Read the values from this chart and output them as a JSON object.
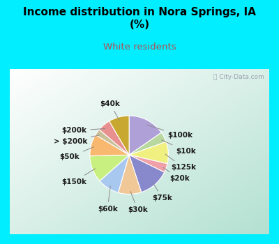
{
  "title": "Income distribution in Nora Springs, IA\n(%)",
  "subtitle": "White residents",
  "title_color": "#000000",
  "subtitle_color": "#b05050",
  "background_top": "#00eeff",
  "slices": [
    {
      "label": "$100k",
      "value": 14.5,
      "color": "#b0a0d8"
    },
    {
      "label": "$10k",
      "value": 4.0,
      "color": "#b8d8a0"
    },
    {
      "label": "$125k",
      "value": 8.5,
      "color": "#f0f080"
    },
    {
      "label": "$20k",
      "value": 3.5,
      "color": "#f0a0a8"
    },
    {
      "label": "$75k",
      "value": 12.0,
      "color": "#8888cc"
    },
    {
      "label": "$30k",
      "value": 9.0,
      "color": "#f0c898"
    },
    {
      "label": "$60k",
      "value": 8.5,
      "color": "#a8c8f0"
    },
    {
      "label": "$150k",
      "value": 10.5,
      "color": "#c8f080"
    },
    {
      "label": "$50k",
      "value": 8.5,
      "color": "#f8b870"
    },
    {
      "label": "> $200k",
      "value": 2.5,
      "color": "#c8c098"
    },
    {
      "label": "$200k",
      "value": 5.0,
      "color": "#e89090"
    },
    {
      "label": "$40k",
      "value": 8.0,
      "color": "#c8a830"
    }
  ],
  "label_color": "#1a1a1a",
  "label_fontsize": 7.5
}
